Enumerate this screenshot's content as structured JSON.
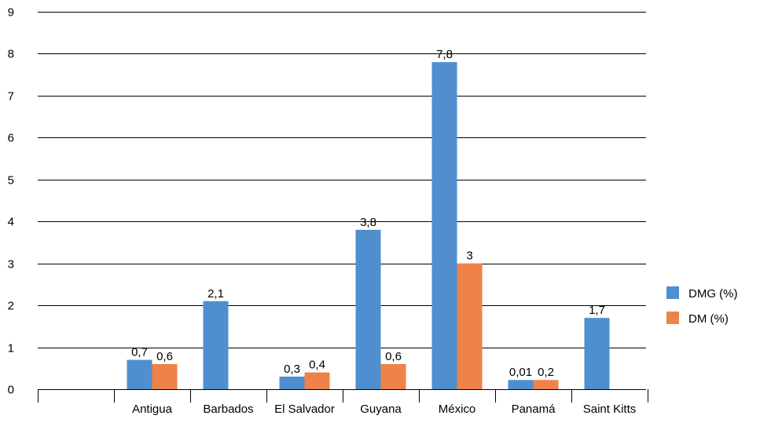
{
  "chart_data": {
    "type": "bar",
    "categories": [
      "",
      "Antigua",
      "Barbados",
      "El Salvador",
      "Guyana",
      "México",
      "Panamá",
      "Saint Kitts"
    ],
    "series": [
      {
        "name": "DMG (%)",
        "color": "#4f8fcf",
        "values": [
          null,
          0.7,
          2.1,
          0.3,
          3.8,
          7.8,
          0.01,
          1.7
        ],
        "labels": [
          "",
          "0,7",
          "2,1",
          "0,3",
          "3,8",
          "7,8",
          "0,01",
          "1,7"
        ]
      },
      {
        "name": "DM (%)",
        "color": "#ef8248",
        "values": [
          null,
          0.6,
          null,
          0.4,
          0.6,
          3,
          0.2,
          null
        ],
        "labels": [
          "",
          "0,6",
          "",
          "0,4",
          "0,6",
          "3",
          "0,2",
          ""
        ]
      }
    ],
    "y_ticks": [
      "0",
      "1",
      "2",
      "3",
      "4",
      "5",
      "6",
      "7",
      "8",
      "9"
    ],
    "ylim": [
      0,
      9
    ],
    "grid": true,
    "legend_position": "right"
  }
}
